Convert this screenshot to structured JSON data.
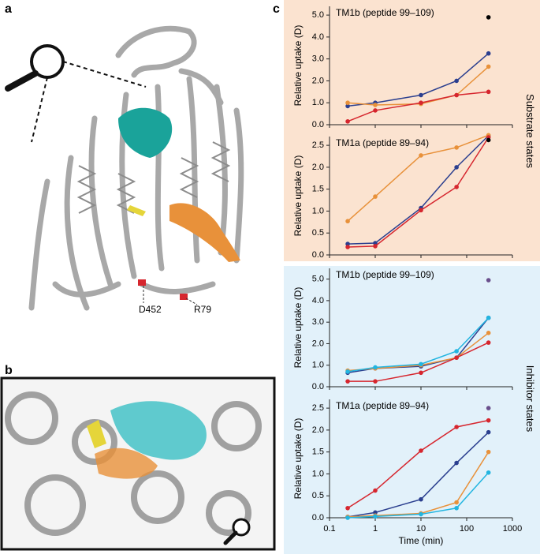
{
  "panel_labels": [
    "a",
    "b",
    "c"
  ],
  "annotations": [
    "D452",
    "R79"
  ],
  "group_labels": [
    "Substrate states",
    "Inhibitor states"
  ],
  "chart_data": [
    {
      "type": "line",
      "title": "TM1b (peptide 99–109)",
      "ylabel": "Relative uptake (D)",
      "log_x": true,
      "x": [
        0.25,
        1,
        10,
        60,
        300
      ],
      "xlim": [
        0.1,
        1000
      ],
      "xticks": [
        0.1,
        1,
        10,
        100,
        1000
      ],
      "ylim": [
        0,
        5.4
      ],
      "yticks": [
        {
          "value": 0,
          "label": "0.0"
        },
        {
          "value": 1,
          "label": "1.0"
        },
        {
          "value": 2,
          "label": "2.0"
        },
        {
          "value": 3,
          "label": "3.0"
        },
        {
          "value": 4,
          "label": "4.0"
        },
        {
          "value": 5,
          "label": "5.0"
        }
      ],
      "series": [
        {
          "color": "#2b3f8f",
          "values": [
            0.85,
            1.0,
            1.35,
            2.0,
            3.25
          ]
        },
        {
          "color": "#e8913a",
          "values": [
            1.0,
            0.9,
            0.95,
            1.35,
            2.65
          ]
        },
        {
          "color": "#d6262e",
          "values": [
            0.15,
            0.65,
            1.0,
            1.35,
            1.5
          ]
        },
        {
          "color": "#000000",
          "values": [
            null,
            null,
            null,
            null,
            4.9
          ]
        }
      ]
    },
    {
      "type": "line",
      "title": "TM1a (peptide 89–94)",
      "ylabel": "Relative uptake (D)",
      "log_x": true,
      "x": [
        0.25,
        1,
        10,
        60,
        300
      ],
      "xlim": [
        0.1,
        1000
      ],
      "xticks": [
        0.1,
        1,
        10,
        100,
        1000
      ],
      "ylim": [
        0,
        2.7
      ],
      "yticks": [
        {
          "value": 0,
          "label": "0.0"
        },
        0.5,
        {
          "value": 1,
          "label": "1.0"
        },
        1.5,
        {
          "value": 2,
          "label": "2.0"
        },
        2.5
      ],
      "series": [
        {
          "color": "#2b3f8f",
          "values": [
            0.25,
            0.27,
            1.07,
            2.0,
            2.72
          ]
        },
        {
          "color": "#e8913a",
          "values": [
            0.77,
            1.33,
            2.27,
            2.45,
            2.73
          ]
        },
        {
          "color": "#d6262e",
          "values": [
            0.18,
            0.2,
            1.02,
            1.55,
            2.68
          ]
        },
        {
          "color": "#000000",
          "values": [
            null,
            null,
            null,
            null,
            2.62
          ]
        }
      ]
    },
    {
      "type": "line",
      "title": "TM1b (peptide 99–109)",
      "ylabel": "Relative uptake (D)",
      "log_x": true,
      "x": [
        0.25,
        1,
        10,
        60,
        300
      ],
      "xlim": [
        0.1,
        1000
      ],
      "xticks": [
        0.1,
        1,
        10,
        100,
        1000
      ],
      "ylim": [
        0,
        5.5
      ],
      "yticks": [
        {
          "value": 0,
          "label": "0.0"
        },
        {
          "value": 1,
          "label": "1.0"
        },
        {
          "value": 2,
          "label": "2.0"
        },
        {
          "value": 3,
          "label": "3.0"
        },
        {
          "value": 4,
          "label": "4.0"
        },
        {
          "value": 5,
          "label": "5.0"
        }
      ],
      "series": [
        {
          "color": "#2b3f8f",
          "values": [
            0.65,
            0.85,
            0.95,
            1.35,
            3.2
          ]
        },
        {
          "color": "#e8913a",
          "values": [
            0.75,
            0.85,
            1.0,
            1.35,
            2.5
          ]
        },
        {
          "color": "#d6262e",
          "values": [
            0.25,
            0.25,
            0.65,
            1.35,
            2.05
          ]
        },
        {
          "color": "#22b5e0",
          "values": [
            0.7,
            0.9,
            1.05,
            1.65,
            3.2
          ]
        },
        {
          "color": "#6a4f8c",
          "values": [
            null,
            null,
            null,
            null,
            4.95
          ]
        }
      ]
    },
    {
      "type": "line",
      "title": "TM1a (peptide 89–94)",
      "ylabel": "Relative uptake (D)",
      "xlabel": "Time (min)",
      "log_x": true,
      "x": [
        0.25,
        1,
        10,
        60,
        300
      ],
      "xlim": [
        0.1,
        1000
      ],
      "xticks": [
        0.1,
        1,
        10,
        100,
        1000
      ],
      "ylim": [
        0,
        2.7
      ],
      "yticks": [
        {
          "value": 0,
          "label": "0.0"
        },
        0.5,
        {
          "value": 1,
          "label": "1.0"
        },
        1.5,
        {
          "value": 2,
          "label": "2.0"
        },
        2.5
      ],
      "series": [
        {
          "color": "#d6262e",
          "values": [
            0.22,
            0.62,
            1.53,
            2.07,
            2.22
          ]
        },
        {
          "color": "#2b3f8f",
          "values": [
            0.02,
            0.12,
            0.42,
            1.25,
            1.95
          ]
        },
        {
          "color": "#e8913a",
          "values": [
            0.02,
            0.05,
            0.1,
            0.35,
            1.5
          ]
        },
        {
          "color": "#22b5e0",
          "values": [
            0.0,
            0.03,
            0.08,
            0.22,
            1.03
          ]
        },
        {
          "color": "#6a4f8c",
          "values": [
            null,
            null,
            null,
            null,
            2.5
          ]
        }
      ]
    }
  ]
}
